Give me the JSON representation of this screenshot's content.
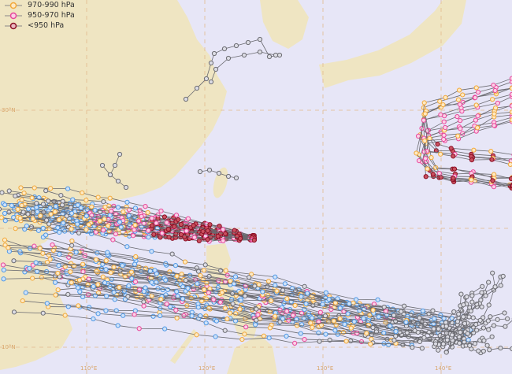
{
  "legend": [
    {
      "label": "970-990 hPa",
      "color": "#f2a93b"
    },
    {
      "label": "950-970 hPa",
      "color": "#e8489b"
    },
    {
      "label": "<950 hPa",
      "color": "#8c0f24"
    }
  ],
  "other_marker_colors": {
    "above_990": "#4f98e6",
    "unknown": "#6c6c72"
  },
  "colors": {
    "sea": "#e7e6f7",
    "land": "#efe5c2",
    "grid": "#e2b98c",
    "track_line": "#6a6a70"
  },
  "grid_labels": {
    "lat": [
      "30°N",
      "10°N"
    ],
    "lon": [
      "110°E",
      "120°E",
      "130°E",
      "140°E"
    ]
  }
}
